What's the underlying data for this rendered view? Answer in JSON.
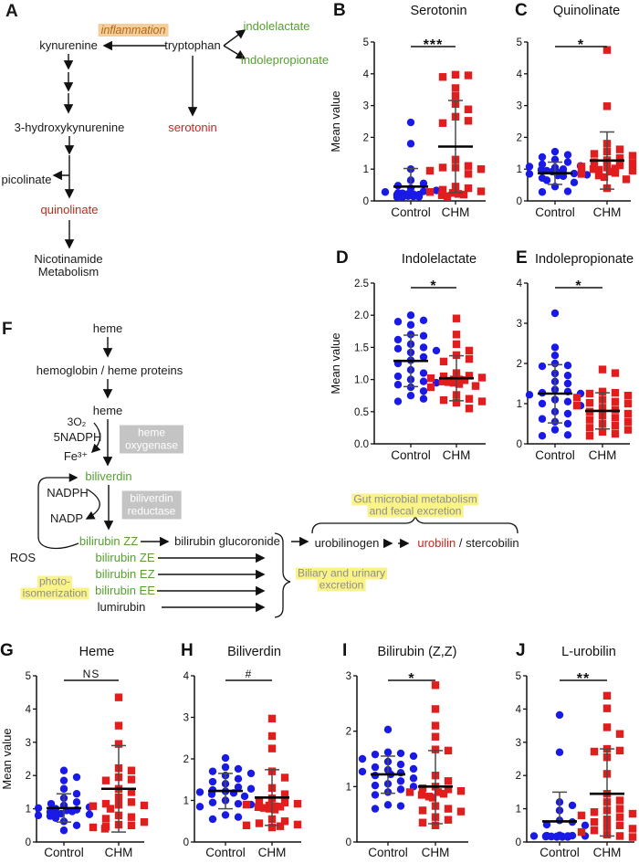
{
  "colors": {
    "control_blue": "#1a1ae6",
    "chm_red": "#e11d1d",
    "green_metabolite": "#55a02f",
    "red_metabolite": "#c9251f",
    "yellow_highlight": "#f9f388",
    "inflammation_highlight": "#f2cf9b",
    "enzyme_box_gray": "#c4c4c4"
  },
  "panelA": {
    "label": "A",
    "inflammation": "inflammation",
    "kynurenine": "kynurenine",
    "tryptophan": "tryptophan",
    "indolelactate": "indolelactate",
    "indolepropionate": "indolepropionate",
    "serotonin": "serotonin",
    "hydroxykynurenine": "3-hydroxykynurenine",
    "picolinate": "picolinate",
    "quinolinate": "quinolinate",
    "nicotinamide_line1": "Nicotinamide",
    "nicotinamide_line2": "Metabolism"
  },
  "panelF": {
    "label": "F",
    "heme1": "heme",
    "hemoglobin": "hemoglobin / heme proteins",
    "heme2": "heme",
    "o2": "3O₂",
    "nadph5": "5NADPH",
    "fe": "Fe³⁺",
    "heme_oxygenase_l1": "heme",
    "heme_oxygenase_l2": "oxygenase",
    "biliverdin": "biliverdin",
    "nadph": "NADPH",
    "nadp": "NADP",
    "biliverdin_reductase_l1": "biliverdin",
    "biliverdin_reductase_l2": "reductase",
    "ros": "ROS",
    "photo_l1": "photo-",
    "photo_l2": "isomerization",
    "bilirubin_zz": "bilirubin ZZ",
    "bilirubin_ze": "bilirubin ZE",
    "bilirubin_ez": "bilirubin EZ",
    "bilirubin_ee": "bilirubin EE",
    "lumirubin": "lumirubin",
    "bilirubin_glucoronide": "bilirubin glucoronide",
    "urobilinogen": "urobilinogen",
    "urobilin": "urobilin",
    "stercobilin": " / stercobilin",
    "gut_l1": "Gut microbial metabolism",
    "gut_l2": "and fecal excretion",
    "biliary_l1": "Biliary and urinary",
    "biliary_l2": "excretion"
  },
  "chart_data": [
    {
      "panel": "B",
      "type": "scatter",
      "title": "Serotonin",
      "ylabel": "Mean value",
      "ylim": [
        0,
        5
      ],
      "yticks": [
        "0",
        "1",
        "2",
        "3",
        "4",
        "5"
      ],
      "categories": [
        "Control",
        "CHM"
      ],
      "significance": "***",
      "series": [
        {
          "name": "Control",
          "marker": "circle",
          "color": "#1a1ae6",
          "mean": 0.45,
          "err": [
            null,
            1.02
          ],
          "values": [
            2.47,
            1.8,
            1.0,
            0.65,
            0.55,
            0.48,
            0.4,
            0.33,
            0.3,
            0.28,
            0.25,
            0.24,
            0.22,
            0.21,
            0.2,
            0.2,
            0.19,
            0.18,
            0.18,
            0.17,
            0.16,
            0.15,
            0.15,
            0.14,
            0.13,
            0.12,
            0.12
          ]
        },
        {
          "name": "CHM",
          "marker": "square",
          "color": "#e11d1d",
          "mean": 1.71,
          "err": [
            0.26,
            3.16
          ],
          "values": [
            3.97,
            3.95,
            3.9,
            3.55,
            3.3,
            3.05,
            2.88,
            2.65,
            2.52,
            2.45,
            1.3,
            1.1,
            1.05,
            1.05,
            1.0,
            0.95,
            0.85,
            0.45,
            0.4,
            0.35,
            0.3,
            0.28,
            0.25,
            0.22,
            0.2,
            0.18,
            0.15
          ]
        }
      ]
    },
    {
      "panel": "C",
      "type": "scatter",
      "title": "Quinolinate",
      "ylabel": "",
      "ylim": [
        0,
        5
      ],
      "yticks": [
        "0",
        "1",
        "2",
        "3",
        "4",
        "5"
      ],
      "categories": [
        "Control",
        "CHM"
      ],
      "significance": "*",
      "series": [
        {
          "name": "Control",
          "marker": "circle",
          "color": "#1a1ae6",
          "mean": 0.87,
          "err": [
            0.52,
            1.22
          ],
          "values": [
            1.55,
            1.45,
            1.38,
            1.3,
            1.22,
            1.15,
            1.1,
            1.08,
            1.05,
            1.0,
            0.98,
            0.95,
            0.92,
            0.9,
            0.88,
            0.86,
            0.85,
            0.82,
            0.8,
            0.78,
            0.72,
            0.65,
            0.58,
            0.45,
            0.3,
            0.28
          ]
        },
        {
          "name": "CHM",
          "marker": "square",
          "color": "#e11d1d",
          "mean": 1.27,
          "err": [
            0.37,
            2.17
          ],
          "values": [
            4.75,
            2.98,
            1.8,
            1.62,
            1.55,
            1.48,
            1.42,
            1.35,
            1.28,
            1.22,
            1.18,
            1.12,
            1.08,
            1.05,
            1.02,
            1.0,
            0.98,
            0.95,
            0.92,
            0.88,
            0.85,
            0.8,
            0.75,
            0.68,
            0.4
          ]
        }
      ]
    },
    {
      "panel": "D",
      "type": "scatter",
      "title": "Indolelactate",
      "ylabel": "Mean value",
      "ylim": [
        0,
        2.5
      ],
      "yticks": [
        "0.0",
        "0.5",
        "1.0",
        "1.5",
        "2.0",
        "2.5"
      ],
      "categories": [
        "Control",
        "CHM"
      ],
      "significance": "*",
      "series": [
        {
          "name": "Control",
          "marker": "circle",
          "color": "#1a1ae6",
          "mean": 1.29,
          "err": [
            0.89,
            1.69
          ],
          "values": [
            2.0,
            1.92,
            1.9,
            1.85,
            1.7,
            1.68,
            1.62,
            1.55,
            1.5,
            1.48,
            1.45,
            1.42,
            1.35,
            1.3,
            1.25,
            1.15,
            1.1,
            1.05,
            1.0,
            0.97,
            0.95,
            0.92,
            0.88,
            0.82,
            0.75,
            0.7,
            0.66
          ]
        },
        {
          "name": "CHM",
          "marker": "square",
          "color": "#e11d1d",
          "mean": 1.02,
          "err": [
            0.67,
            1.37
          ],
          "values": [
            1.95,
            1.7,
            1.55,
            1.45,
            1.38,
            1.32,
            1.28,
            1.1,
            1.06,
            1.05,
            1.03,
            1.02,
            1.0,
            1.0,
            0.99,
            0.97,
            0.96,
            0.95,
            0.93,
            0.9,
            0.88,
            0.76,
            0.7,
            0.68,
            0.66,
            0.64,
            0.55
          ]
        }
      ]
    },
    {
      "panel": "E",
      "type": "scatter",
      "title": "Indolepropionate",
      "ylabel": "",
      "ylim": [
        0,
        4
      ],
      "yticks": [
        "0",
        "1",
        "2",
        "3",
        "4"
      ],
      "categories": [
        "Control",
        "CHM"
      ],
      "significance": "*",
      "series": [
        {
          "name": "Control",
          "marker": "circle",
          "color": "#1a1ae6",
          "mean": 1.25,
          "err": [
            0.52,
            1.97
          ],
          "values": [
            3.25,
            2.4,
            2.2,
            2.0,
            1.95,
            1.93,
            1.75,
            1.7,
            1.55,
            1.5,
            1.35,
            1.3,
            1.27,
            1.25,
            1.22,
            1.1,
            1.05,
            1.0,
            0.95,
            0.8,
            0.75,
            0.62,
            0.55,
            0.5,
            0.35,
            0.22,
            0.2
          ]
        },
        {
          "name": "CHM",
          "marker": "square",
          "color": "#e11d1d",
          "mean": 0.82,
          "err": [
            0.37,
            1.27
          ],
          "values": [
            1.85,
            1.76,
            1.3,
            1.27,
            1.25,
            1.2,
            1.15,
            1.1,
            1.05,
            1.02,
            1.0,
            0.95,
            0.9,
            0.85,
            0.8,
            0.75,
            0.7,
            0.65,
            0.6,
            0.55,
            0.5,
            0.45,
            0.4,
            0.35,
            0.3,
            0.25,
            0.2
          ]
        }
      ]
    },
    {
      "panel": "G",
      "type": "scatter",
      "title": "Heme",
      "ylabel": "Mean value",
      "ylim": [
        0,
        5
      ],
      "yticks": [
        "0",
        "1",
        "2",
        "3",
        "4",
        "5"
      ],
      "categories": [
        "Control",
        "CHM"
      ],
      "significance": "NS",
      "series": [
        {
          "name": "Control",
          "marker": "circle",
          "color": "#1a1ae6",
          "mean": 1.02,
          "err": [
            0.6,
            1.45
          ],
          "values": [
            2.15,
            1.95,
            1.85,
            1.6,
            1.45,
            1.32,
            1.2,
            1.15,
            1.1,
            1.05,
            1.02,
            1.0,
            0.97,
            0.95,
            0.92,
            0.9,
            0.88,
            0.85,
            0.83,
            0.8,
            0.78,
            0.72,
            0.62,
            0.5,
            0.35
          ]
        },
        {
          "name": "CHM",
          "marker": "square",
          "color": "#e11d1d",
          "mean": 1.6,
          "err": [
            0.3,
            2.9
          ],
          "values": [
            4.35,
            3.5,
            2.95,
            2.22,
            2.15,
            1.95,
            1.88,
            1.85,
            1.6,
            1.5,
            1.35,
            1.2,
            1.15,
            1.12,
            1.1,
            1.08,
            1.0,
            0.8,
            0.75,
            0.7,
            0.6,
            0.52,
            0.5,
            0.46,
            0.44,
            0.4
          ]
        }
      ]
    },
    {
      "panel": "H",
      "type": "scatter",
      "title": "Biliverdin",
      "ylabel": "",
      "ylim": [
        0,
        4
      ],
      "yticks": [
        "0",
        "1",
        "2",
        "3",
        "4"
      ],
      "categories": [
        "Control",
        "CHM"
      ],
      "significance": "#",
      "series": [
        {
          "name": "Control",
          "marker": "circle",
          "color": "#1a1ae6",
          "mean": 1.23,
          "err": [
            0.8,
            1.65
          ],
          "values": [
            2.02,
            1.8,
            1.76,
            1.7,
            1.65,
            1.6,
            1.52,
            1.45,
            1.4,
            1.32,
            1.28,
            1.25,
            1.22,
            1.2,
            1.18,
            1.15,
            1.1,
            1.0,
            0.95,
            0.92,
            0.9,
            0.85,
            0.65,
            0.6,
            0.55
          ]
        },
        {
          "name": "CHM",
          "marker": "square",
          "color": "#e11d1d",
          "mean": 1.07,
          "err": [
            0.4,
            1.74
          ],
          "values": [
            2.97,
            2.55,
            2.25,
            1.7,
            1.55,
            1.3,
            1.15,
            1.05,
            1.0,
            0.95,
            0.92,
            0.9,
            0.88,
            0.86,
            0.85,
            0.84,
            0.82,
            0.8,
            0.78,
            0.55,
            0.5,
            0.45,
            0.42,
            0.4,
            0.38,
            0.35
          ]
        }
      ]
    },
    {
      "panel": "I",
      "type": "scatter",
      "title": "Bilirubin (Z,Z)",
      "ylabel": "",
      "ylim": [
        0,
        3
      ],
      "yticks": [
        "0",
        "1",
        "2",
        "3"
      ],
      "categories": [
        "Control",
        "CHM"
      ],
      "significance": "*",
      "series": [
        {
          "name": "Control",
          "marker": "circle",
          "color": "#1a1ae6",
          "mean": 1.22,
          "err": [
            0.88,
            1.55
          ],
          "values": [
            2.03,
            1.62,
            1.6,
            1.58,
            1.55,
            1.5,
            1.45,
            1.4,
            1.35,
            1.32,
            1.3,
            1.27,
            1.25,
            1.22,
            1.2,
            1.15,
            1.1,
            1.05,
            1.02,
            1.0,
            0.95,
            0.9,
            0.85,
            0.67,
            0.65,
            0.6
          ]
        },
        {
          "name": "CHM",
          "marker": "square",
          "color": "#e11d1d",
          "mean": 1.0,
          "err": [
            0.33,
            1.65
          ],
          "values": [
            2.83,
            2.4,
            2.1,
            1.9,
            1.67,
            1.65,
            1.2,
            1.1,
            1.0,
            0.97,
            0.95,
            0.92,
            0.9,
            0.9,
            0.87,
            0.85,
            0.82,
            0.8,
            0.65,
            0.6,
            0.57,
            0.55,
            0.45,
            0.4,
            0.35,
            0.3
          ]
        }
      ]
    },
    {
      "panel": "J",
      "type": "scatter",
      "title": "L-urobilin",
      "ylabel": "",
      "ylim": [
        0,
        5
      ],
      "yticks": [
        "0",
        "1",
        "2",
        "3",
        "4",
        "5"
      ],
      "categories": [
        "Control",
        "CHM"
      ],
      "significance": "**",
      "series": [
        {
          "name": "Control",
          "marker": "circle",
          "color": "#1a1ae6",
          "mean": 0.62,
          "err": [
            null,
            1.5
          ],
          "values": [
            3.82,
            2.7,
            1.2,
            1.1,
            0.95,
            0.65,
            0.6,
            0.52,
            0.5,
            0.2,
            0.19,
            0.19,
            0.18,
            0.18,
            0.18,
            0.18,
            0.17,
            0.17,
            0.17,
            0.16,
            0.16,
            0.16,
            0.15,
            0.15,
            0.15
          ]
        },
        {
          "name": "CHM",
          "marker": "square",
          "color": "#e11d1d",
          "mean": 1.45,
          "err": [
            0.18,
            2.8
          ],
          "values": [
            4.4,
            4.02,
            3.45,
            3.25,
            2.8,
            2.75,
            2.72,
            2.55,
            2.05,
            1.45,
            1.25,
            1.2,
            1.0,
            0.95,
            0.9,
            0.85,
            0.8,
            0.75,
            0.68,
            0.6,
            0.5,
            0.45,
            0.4,
            0.35,
            0.3,
            0.22,
            0.18,
            0.15
          ]
        }
      ]
    }
  ]
}
